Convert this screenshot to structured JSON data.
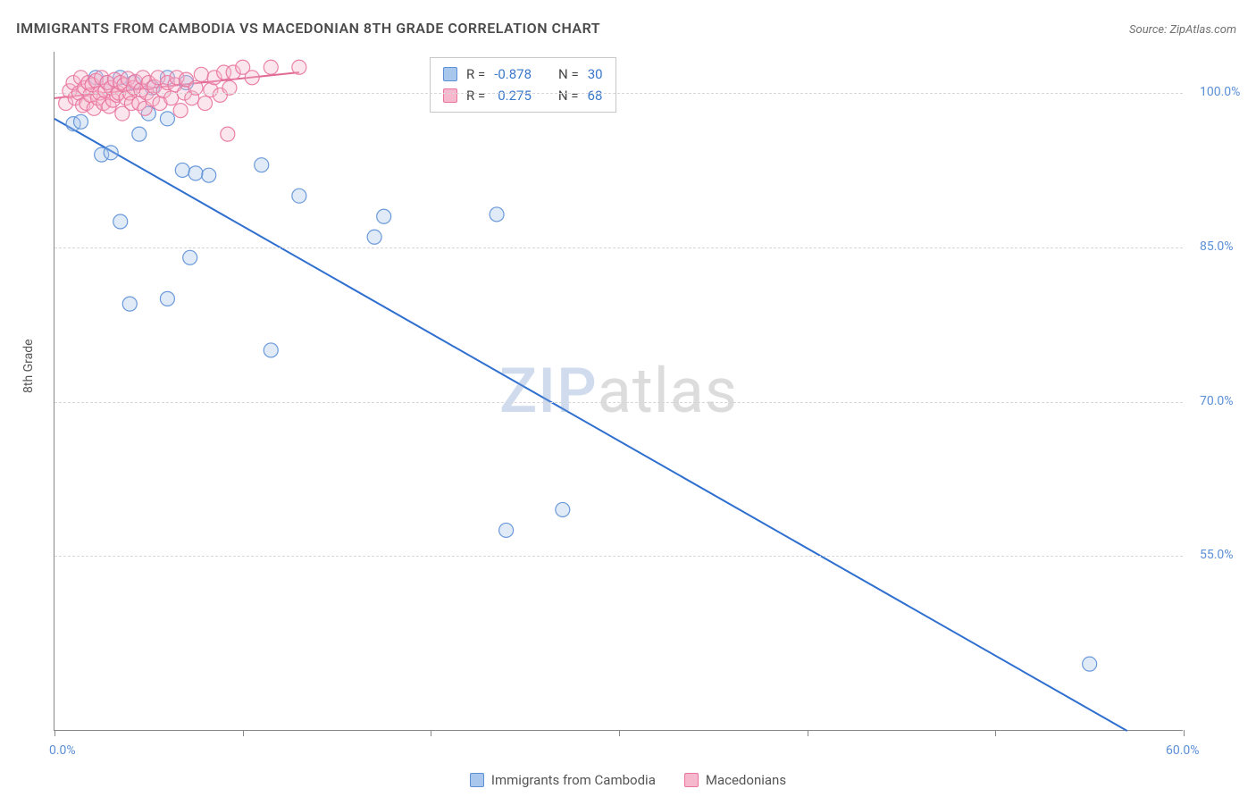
{
  "title": "IMMIGRANTS FROM CAMBODIA VS MACEDONIAN 8TH GRADE CORRELATION CHART",
  "source_label": "Source: ",
  "source_value": "ZipAtlas.com",
  "y_axis_label": "8th Grade",
  "watermark_part1": "ZIP",
  "watermark_part2": "atlas",
  "chart": {
    "type": "scatter",
    "background_color": "#ffffff",
    "grid_color": "#d7d7d7",
    "axis_color": "#888888",
    "xlim": [
      0,
      60
    ],
    "ylim": [
      38,
      104
    ],
    "x_ticks": [
      0,
      10,
      20,
      30,
      40,
      50,
      60
    ],
    "x_tick_labels": [
      "0.0%",
      "",
      "",
      "",
      "",
      "",
      "60.0%"
    ],
    "y_ticks": [
      55,
      70,
      85,
      100
    ],
    "y_tick_labels": [
      "55.0%",
      "70.0%",
      "85.0%",
      "100.0%"
    ],
    "point_radius": 8,
    "point_fill_opacity": 0.35,
    "point_stroke_opacity": 0.9,
    "point_stroke_width": 1.2,
    "trend_line_width": 2,
    "series": [
      {
        "name": "Immigrants from Cambodia",
        "color_fill": "#a9c7ec",
        "color_stroke": "#5b8fd6",
        "trend_color": "#2f6fd0",
        "R": -0.878,
        "N": 30,
        "trend_line": {
          "x1": 0,
          "y1": 97.5,
          "x2": 57,
          "y2": 38
        },
        "points": [
          [
            1.0,
            97.0
          ],
          [
            1.4,
            97.2
          ],
          [
            2.2,
            101.5
          ],
          [
            2.8,
            101.0
          ],
          [
            3.5,
            101.5
          ],
          [
            4.2,
            101.0
          ],
          [
            5.2,
            100.5
          ],
          [
            6.0,
            101.5
          ],
          [
            7.0,
            101.0
          ],
          [
            5.0,
            98.0
          ],
          [
            2.5,
            94.0
          ],
          [
            3.0,
            94.2
          ],
          [
            4.5,
            96.0
          ],
          [
            6.0,
            97.5
          ],
          [
            6.8,
            92.5
          ],
          [
            7.5,
            92.2
          ],
          [
            8.2,
            92.0
          ],
          [
            11.0,
            93.0
          ],
          [
            3.5,
            87.5
          ],
          [
            7.2,
            84.0
          ],
          [
            6.0,
            80.0
          ],
          [
            4.0,
            79.5
          ],
          [
            13.0,
            90.0
          ],
          [
            17.5,
            88.0
          ],
          [
            17.0,
            86.0
          ],
          [
            11.5,
            75.0
          ],
          [
            27.0,
            59.5
          ],
          [
            24.0,
            57.5
          ],
          [
            23.5,
            88.2
          ],
          [
            55.0,
            44.5
          ]
        ]
      },
      {
        "name": "Macedonians",
        "color_fill": "#f6b8cc",
        "color_stroke": "#e8749f",
        "trend_color": "#e06a94",
        "R": 0.275,
        "N": 68,
        "trend_line": {
          "x1": 0,
          "y1": 99.5,
          "x2": 13,
          "y2": 102.0
        },
        "points": [
          [
            0.6,
            99.0
          ],
          [
            0.8,
            100.2
          ],
          [
            1.0,
            101.0
          ],
          [
            1.1,
            99.5
          ],
          [
            1.3,
            100.0
          ],
          [
            1.4,
            101.5
          ],
          [
            1.5,
            98.8
          ],
          [
            1.6,
            100.5
          ],
          [
            1.7,
            99.0
          ],
          [
            1.8,
            101.0
          ],
          [
            1.9,
            99.8
          ],
          [
            2.0,
            100.8
          ],
          [
            2.1,
            98.5
          ],
          [
            2.2,
            101.2
          ],
          [
            2.3,
            99.5
          ],
          [
            2.4,
            100.0
          ],
          [
            2.5,
            101.5
          ],
          [
            2.6,
            99.0
          ],
          [
            2.7,
            100.2
          ],
          [
            2.8,
            101.0
          ],
          [
            2.9,
            98.7
          ],
          [
            3.0,
            100.5
          ],
          [
            3.1,
            99.3
          ],
          [
            3.2,
            101.3
          ],
          [
            3.3,
            99.8
          ],
          [
            3.4,
            100.0
          ],
          [
            3.5,
            101.0
          ],
          [
            3.6,
            98.0
          ],
          [
            3.7,
            100.8
          ],
          [
            3.8,
            99.5
          ],
          [
            3.9,
            101.4
          ],
          [
            4.0,
            100.0
          ],
          [
            4.1,
            99.0
          ],
          [
            4.2,
            100.5
          ],
          [
            4.3,
            101.1
          ],
          [
            4.5,
            99.0
          ],
          [
            4.6,
            100.3
          ],
          [
            4.7,
            101.5
          ],
          [
            4.8,
            98.5
          ],
          [
            4.9,
            100.0
          ],
          [
            5.0,
            101.0
          ],
          [
            5.2,
            99.4
          ],
          [
            5.3,
            100.6
          ],
          [
            5.5,
            101.5
          ],
          [
            5.6,
            99.0
          ],
          [
            5.8,
            100.2
          ],
          [
            6.0,
            101.0
          ],
          [
            6.2,
            99.5
          ],
          [
            6.4,
            100.8
          ],
          [
            6.5,
            101.5
          ],
          [
            6.7,
            98.3
          ],
          [
            6.9,
            100.0
          ],
          [
            7.0,
            101.3
          ],
          [
            7.3,
            99.5
          ],
          [
            7.5,
            100.5
          ],
          [
            7.8,
            101.8
          ],
          [
            8.0,
            99.0
          ],
          [
            8.3,
            100.3
          ],
          [
            8.5,
            101.5
          ],
          [
            8.8,
            99.8
          ],
          [
            9.0,
            102.0
          ],
          [
            9.3,
            100.5
          ],
          [
            9.5,
            102.0
          ],
          [
            10.0,
            102.5
          ],
          [
            10.5,
            101.5
          ],
          [
            11.5,
            102.5
          ],
          [
            13.0,
            102.5
          ],
          [
            9.2,
            96.0
          ]
        ]
      }
    ]
  },
  "legend_top": {
    "stat1_label": "R =",
    "stat2_label": "N ="
  },
  "legend_bottom": {
    "item1": "Immigrants from Cambodia",
    "item2": "Macedonians"
  }
}
